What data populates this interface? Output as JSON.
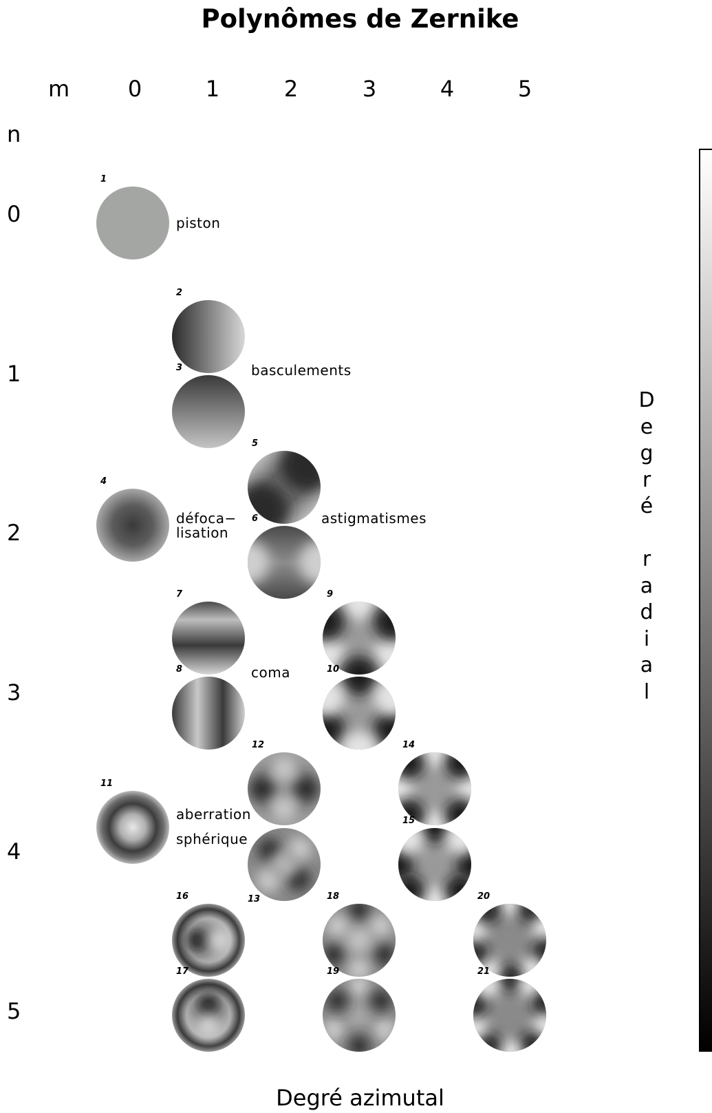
{
  "title": "Polynômes de Zernike",
  "axis_heads": {
    "m": "m",
    "n": "n"
  },
  "columns": [
    "0",
    "1",
    "2",
    "3",
    "4",
    "5"
  ],
  "rows": [
    "0",
    "1",
    "2",
    "3",
    "4",
    "5"
  ],
  "x_axis_label": "Degré azimutal",
  "y_axis_label": "Degré radial",
  "colorbar": {
    "colors": [
      "#000000",
      "#ffffff"
    ]
  },
  "modes": [
    {
      "index": "1",
      "n": 0,
      "m": 0,
      "type": "piston"
    },
    {
      "index": "2",
      "n": 1,
      "m": 1,
      "type": "tilt-x"
    },
    {
      "index": "3",
      "n": 1,
      "m": 1,
      "type": "tilt-y"
    },
    {
      "index": "4",
      "n": 2,
      "m": 0,
      "type": "defocus"
    },
    {
      "index": "5",
      "n": 2,
      "m": 2,
      "type": "astig-45"
    },
    {
      "index": "6",
      "n": 2,
      "m": 2,
      "type": "astig-0"
    },
    {
      "index": "7",
      "n": 3,
      "m": 1,
      "type": "coma-y"
    },
    {
      "index": "8",
      "n": 3,
      "m": 1,
      "type": "coma-x"
    },
    {
      "index": "9",
      "n": 3,
      "m": 3,
      "type": "trefoil-a"
    },
    {
      "index": "10",
      "n": 3,
      "m": 3,
      "type": "trefoil-b"
    },
    {
      "index": "11",
      "n": 4,
      "m": 0,
      "type": "spherical"
    },
    {
      "index": "12",
      "n": 4,
      "m": 2,
      "type": "sec-astig-a"
    },
    {
      "index": "13",
      "n": 4,
      "m": 2,
      "type": "sec-astig-b"
    },
    {
      "index": "14",
      "n": 4,
      "m": 4,
      "type": "tetrafoil-a"
    },
    {
      "index": "15",
      "n": 4,
      "m": 4,
      "type": "tetrafoil-b"
    },
    {
      "index": "16",
      "n": 5,
      "m": 1,
      "type": "sec-coma-x"
    },
    {
      "index": "17",
      "n": 5,
      "m": 1,
      "type": "sec-coma-y"
    },
    {
      "index": "18",
      "n": 5,
      "m": 3,
      "type": "sec-trefoil-a"
    },
    {
      "index": "19",
      "n": 5,
      "m": 3,
      "type": "sec-trefoil-b"
    },
    {
      "index": "20",
      "n": 5,
      "m": 5,
      "type": "pentafoil-a"
    },
    {
      "index": "21",
      "n": 5,
      "m": 5,
      "type": "pentafoil-b"
    }
  ],
  "annotations": {
    "piston": "piston",
    "tilts": "basculements",
    "defocus_1": "défoca−",
    "defocus_2": "lisation",
    "astigmatism": "astigmatismes",
    "coma": "coma",
    "spherical_1": "aberration",
    "spherical_2": "sphérique"
  }
}
